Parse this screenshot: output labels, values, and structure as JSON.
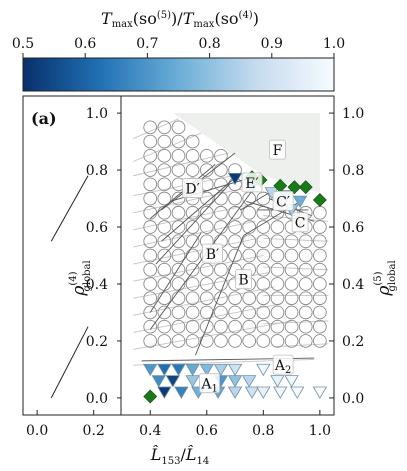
{
  "chart_data": {
    "type": "scatter",
    "panel_label": "(a)",
    "colorbar": {
      "label": "T_max(so^(5)) / T_max(so^(4))",
      "label_parts": {
        "t1": "T",
        "s1": "max",
        "m1": "(so",
        "sup1": "(5)",
        "c1": ")/",
        "t2": "T",
        "s2": "max",
        "m2": "(so",
        "sup2": "(4)",
        "c2": ")"
      },
      "range": [
        0.5,
        1.0
      ],
      "ticks": [
        "0.5",
        "0.6",
        "0.7",
        "0.8",
        "0.9",
        "1.0"
      ],
      "colors": [
        "#08306b",
        "#2171b5",
        "#6baed6",
        "#c6dbef",
        "#f7fbff"
      ]
    },
    "xlabel": "L̂153/L̂14",
    "xlabel_parts": {
      "a": "L̂",
      "asub": "153",
      "slash": "/",
      "b": "L̂",
      "bsub": "14"
    },
    "ylabel_left": "ρ(4) global",
    "ylabel_left_parts": {
      "rho": "ρ",
      "sup": "(4)",
      "sub": "global"
    },
    "ylabel_right": "ρ(5) global",
    "ylabel_right_parts": {
      "rho": "ρ",
      "sup": "(5)",
      "sub": "global"
    },
    "xlim": [
      -0.05,
      1.05
    ],
    "ylim": [
      -0.06,
      1.06
    ],
    "xticks": [
      "0.0",
      "0.2",
      "0.4",
      "0.6",
      "0.8",
      "1.0"
    ],
    "xtick_values": [
      0.0,
      0.2,
      0.4,
      0.6,
      0.8,
      1.0
    ],
    "yticks": [
      "0.0",
      "0.2",
      "0.4",
      "0.6",
      "0.8",
      "1.0"
    ],
    "ytick_values": [
      0.0,
      0.2,
      0.4,
      0.6,
      0.8,
      1.0
    ],
    "region_labels": [
      {
        "name": "F",
        "x": 0.85,
        "y": 0.87
      },
      {
        "name": "E′",
        "x": 0.76,
        "y": 0.755
      },
      {
        "name": "D′",
        "x": 0.55,
        "y": 0.735
      },
      {
        "name": "C′",
        "x": 0.87,
        "y": 0.69
      },
      {
        "name": "C",
        "x": 0.93,
        "y": 0.615
      },
      {
        "name": "B′",
        "x": 0.62,
        "y": 0.505
      },
      {
        "name": "B",
        "x": 0.73,
        "y": 0.415
      },
      {
        "name": "A2",
        "x": 0.87,
        "y": 0.115
      },
      {
        "name": "A1",
        "x": 0.61,
        "y": 0.05
      }
    ],
    "region_F_polygon": [
      [
        0.48,
        1.0
      ],
      [
        1.0,
        1.0
      ],
      [
        1.0,
        0.72
      ],
      [
        0.8,
        0.78
      ]
    ],
    "circle_grid": {
      "x_start": 0.4,
      "x_step": 0.05,
      "y_start": 0.2,
      "y_step": 0.05,
      "boundary": [
        [
          0.48,
          1.0
        ],
        [
          0.8,
          0.78
        ],
        [
          1.0,
          0.72
        ]
      ],
      "skip_near": [
        [
          0.8,
          0.74
        ],
        [
          0.85,
          0.72
        ],
        [
          0.9,
          0.72
        ],
        [
          0.95,
          0.71
        ],
        [
          1.0,
          0.72
        ]
      ]
    },
    "triangles": [
      {
        "x": 0.7,
        "y": 0.77,
        "v": 0.52
      },
      {
        "x": 0.76,
        "y": 0.74,
        "v": 0.72
      },
      {
        "x": 0.83,
        "y": 0.72,
        "v": 0.86
      },
      {
        "x": 0.88,
        "y": 0.71,
        "v": 0.8
      },
      {
        "x": 0.93,
        "y": 0.69,
        "v": 0.75
      },
      {
        "x": 0.86,
        "y": 0.68,
        "v": 0.9
      },
      {
        "x": 0.9,
        "y": 0.66,
        "v": 0.82
      },
      {
        "x": 0.4,
        "y": 0.1,
        "v": 0.7
      },
      {
        "x": 0.45,
        "y": 0.1,
        "v": 0.62
      },
      {
        "x": 0.5,
        "y": 0.1,
        "v": 0.64
      },
      {
        "x": 0.55,
        "y": 0.1,
        "v": 0.74
      },
      {
        "x": 0.6,
        "y": 0.1,
        "v": 0.78
      },
      {
        "x": 0.65,
        "y": 0.1,
        "v": 0.84
      },
      {
        "x": 0.7,
        "y": 0.1,
        "v": 0.9
      },
      {
        "x": 0.8,
        "y": 0.1,
        "v": 0.98
      },
      {
        "x": 0.43,
        "y": 0.06,
        "v": 0.68
      },
      {
        "x": 0.48,
        "y": 0.06,
        "v": 0.54
      },
      {
        "x": 0.55,
        "y": 0.06,
        "v": 0.82
      },
      {
        "x": 0.65,
        "y": 0.06,
        "v": 0.7
      },
      {
        "x": 0.7,
        "y": 0.06,
        "v": 0.8
      },
      {
        "x": 0.75,
        "y": 0.06,
        "v": 0.86
      },
      {
        "x": 0.85,
        "y": 0.06,
        "v": 0.96
      },
      {
        "x": 0.9,
        "y": 0.06,
        "v": 0.99
      },
      {
        "x": 0.45,
        "y": 0.02,
        "v": 0.52
      },
      {
        "x": 0.51,
        "y": 0.02,
        "v": 0.66
      },
      {
        "x": 0.57,
        "y": 0.02,
        "v": 0.76
      },
      {
        "x": 0.64,
        "y": 0.02,
        "v": 0.74
      },
      {
        "x": 0.7,
        "y": 0.02,
        "v": 0.86
      },
      {
        "x": 0.76,
        "y": 0.02,
        "v": 0.9
      },
      {
        "x": 0.8,
        "y": 0.02,
        "v": 0.96
      },
      {
        "x": 0.86,
        "y": 0.02,
        "v": 0.98
      },
      {
        "x": 0.92,
        "y": 0.02,
        "v": 1.0
      },
      {
        "x": 1.0,
        "y": 0.02,
        "v": 1.0
      }
    ],
    "diamonds": [
      {
        "x": 0.76,
        "y": 0.775
      },
      {
        "x": 0.79,
        "y": 0.765
      },
      {
        "x": 0.86,
        "y": 0.745
      },
      {
        "x": 0.95,
        "y": 0.74
      },
      {
        "x": 0.91,
        "y": 0.74
      },
      {
        "x": 1.0,
        "y": 0.695
      },
      {
        "x": 0.4,
        "y": 0.005
      }
    ],
    "gray_lines": [
      [
        [
          0.34,
          0.91
        ],
        [
          0.5,
          0.98
        ]
      ],
      [
        [
          0.34,
          0.83
        ],
        [
          0.58,
          0.93
        ]
      ],
      [
        [
          0.34,
          0.78
        ],
        [
          0.68,
          0.86
        ]
      ],
      [
        [
          0.34,
          0.71
        ],
        [
          0.74,
          0.79
        ]
      ],
      [
        [
          0.34,
          0.65
        ],
        [
          0.75,
          0.74
        ]
      ],
      [
        [
          0.34,
          0.59
        ],
        [
          0.76,
          0.68
        ]
      ],
      [
        [
          0.34,
          0.53
        ],
        [
          0.77,
          0.62
        ]
      ],
      [
        [
          0.34,
          0.47
        ],
        [
          0.78,
          0.56
        ]
      ],
      [
        [
          0.34,
          0.41
        ],
        [
          0.8,
          0.5
        ]
      ],
      [
        [
          0.34,
          0.35
        ],
        [
          0.82,
          0.44
        ]
      ],
      [
        [
          0.34,
          0.29
        ],
        [
          0.84,
          0.39
        ]
      ],
      [
        [
          0.34,
          0.23
        ],
        [
          0.86,
          0.33
        ]
      ],
      [
        [
          0.34,
          0.17
        ],
        [
          0.9,
          0.27
        ]
      ],
      [
        [
          0.34,
          0.115
        ],
        [
          0.98,
          0.135
        ]
      ],
      [
        [
          0.8,
          0.64
        ],
        [
          1.03,
          0.62
        ]
      ],
      [
        [
          0.8,
          0.56
        ],
        [
          1.03,
          0.55
        ]
      ],
      [
        [
          0.8,
          0.46
        ],
        [
          1.03,
          0.45
        ]
      ],
      [
        [
          0.8,
          0.36
        ],
        [
          1.03,
          0.36
        ]
      ],
      [
        [
          0.8,
          0.26
        ],
        [
          1.03,
          0.27
        ]
      ],
      [
        [
          0.84,
          0.18
        ],
        [
          1.03,
          0.19
        ]
      ]
    ],
    "dark_lines": [
      [
        [
          0.4,
          0.63
        ],
        [
          0.63,
          0.82
        ]
      ],
      [
        [
          0.44,
          0.66
        ],
        [
          0.7,
          0.86
        ]
      ],
      [
        [
          0.47,
          0.69
        ],
        [
          0.78,
          0.78
        ]
      ],
      [
        [
          0.42,
          0.47
        ],
        [
          0.68,
          0.75
        ]
      ],
      [
        [
          0.44,
          0.55
        ],
        [
          0.72,
          0.79
        ]
      ],
      [
        [
          0.4,
          0.3
        ],
        [
          0.58,
          0.58
        ]
      ],
      [
        [
          0.4,
          0.24
        ],
        [
          0.77,
          0.74
        ]
      ],
      [
        [
          0.56,
          0.15
        ],
        [
          0.73,
          0.57
        ]
      ],
      [
        [
          0.73,
          0.57
        ],
        [
          0.93,
          0.69
        ]
      ],
      [
        [
          0.74,
          0.69
        ],
        [
          0.98,
          0.62
        ]
      ],
      [
        [
          0.82,
          0.7
        ],
        [
          0.97,
          0.64
        ]
      ],
      [
        [
          0.78,
          0.66
        ],
        [
          0.96,
          0.66
        ]
      ],
      [
        [
          0.37,
          0.13
        ],
        [
          0.98,
          0.14
        ]
      ],
      [
        [
          0.72,
          0.66
        ],
        [
          0.82,
          0.72
        ]
      ]
    ],
    "left_strip_lines": [
      [
        [
          0.05,
          0.0
        ],
        [
          0.18,
          0.25
        ]
      ],
      [
        [
          0.05,
          0.55
        ],
        [
          0.18,
          0.78
        ]
      ]
    ]
  }
}
